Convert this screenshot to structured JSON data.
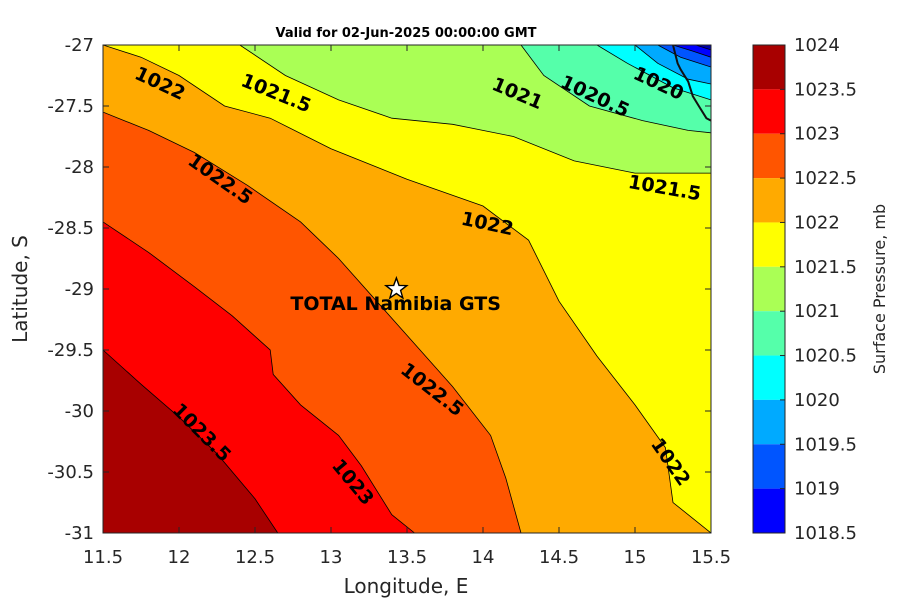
{
  "chart_data": {
    "type": "heatmap",
    "title": "Valid for 02-Jun-2025 00:00:00 GMT",
    "xlabel": "Longitude, E",
    "ylabel": "Latitude, S",
    "xlim": [
      11.5,
      15.5
    ],
    "ylim": [
      -31,
      -27
    ],
    "x_ticks": [
      "11.5",
      "12",
      "12.5",
      "13",
      "13.5",
      "14",
      "14.5",
      "15",
      "15.5"
    ],
    "y_ticks": [
      "-27",
      "-27.5",
      "-28",
      "-28.5",
      "-29",
      "-29.5",
      "-30",
      "-30.5",
      "-31"
    ],
    "colorbar": {
      "label": "Surface Pressure, mb",
      "range": [
        1018.5,
        1024
      ],
      "ticks": [
        "1024",
        "1023.5",
        "1023",
        "1022.5",
        "1022",
        "1021.5",
        "1021",
        "1020.5",
        "1020",
        "1019.5",
        "1019",
        "1018.5"
      ],
      "bands": [
        {
          "from": 1023.5,
          "to": 1024.0,
          "color": "#a80000"
        },
        {
          "from": 1023.0,
          "to": 1023.5,
          "color": "#ff0000"
        },
        {
          "from": 1022.5,
          "to": 1023.0,
          "color": "#ff5500"
        },
        {
          "from": 1022.0,
          "to": 1022.5,
          "color": "#ffaa00"
        },
        {
          "from": 1021.5,
          "to": 1022.0,
          "color": "#ffff00"
        },
        {
          "from": 1021.0,
          "to": 1021.5,
          "color": "#aaff55"
        },
        {
          "from": 1020.5,
          "to": 1021.0,
          "color": "#55ffaa"
        },
        {
          "from": 1020.0,
          "to": 1020.5,
          "color": "#00ffff"
        },
        {
          "from": 1019.5,
          "to": 1020.0,
          "color": "#00aaff"
        },
        {
          "from": 1019.0,
          "to": 1019.5,
          "color": "#0055ff"
        },
        {
          "from": 1018.5,
          "to": 1019.0,
          "color": "#0000ff"
        },
        {
          "from": 1018.0,
          "to": 1018.5,
          "color": "#0000aa"
        }
      ]
    },
    "contours": [
      {
        "level": "1023.5",
        "points": [
          [
            11.5,
            -29.5
          ],
          [
            11.75,
            -29.78
          ],
          [
            12.0,
            -30.05
          ],
          [
            12.25,
            -30.35
          ],
          [
            12.5,
            -30.72
          ],
          [
            12.65,
            -31.0
          ]
        ]
      },
      {
        "level": "1023",
        "points": [
          [
            11.5,
            -28.45
          ],
          [
            11.8,
            -28.7
          ],
          [
            12.1,
            -28.98
          ],
          [
            12.35,
            -29.22
          ],
          [
            12.6,
            -29.5
          ],
          [
            12.62,
            -29.7
          ],
          [
            12.8,
            -29.95
          ],
          [
            13.05,
            -30.2
          ],
          [
            13.2,
            -30.45
          ],
          [
            13.4,
            -30.85
          ],
          [
            13.55,
            -31.0
          ]
        ]
      },
      {
        "level": "1022.5",
        "points": [
          [
            11.5,
            -27.55
          ],
          [
            11.8,
            -27.7
          ],
          [
            12.1,
            -27.88
          ],
          [
            12.45,
            -28.15
          ],
          [
            12.8,
            -28.45
          ],
          [
            13.05,
            -28.75
          ],
          [
            13.3,
            -29.1
          ],
          [
            13.55,
            -29.45
          ],
          [
            13.8,
            -29.8
          ],
          [
            14.05,
            -30.2
          ],
          [
            14.15,
            -30.55
          ],
          [
            14.25,
            -31.0
          ]
        ]
      },
      {
        "level": "1022",
        "points": [
          [
            11.5,
            -27.0
          ],
          [
            11.75,
            -27.1
          ],
          [
            12.0,
            -27.25
          ],
          [
            12.3,
            -27.5
          ],
          [
            12.6,
            -27.6
          ],
          [
            13.0,
            -27.85
          ],
          [
            13.5,
            -28.1
          ],
          [
            14.0,
            -28.32
          ],
          [
            14.3,
            -28.6
          ],
          [
            14.5,
            -29.1
          ],
          [
            14.75,
            -29.55
          ],
          [
            15.0,
            -29.95
          ],
          [
            15.2,
            -30.3
          ],
          [
            15.25,
            -30.75
          ],
          [
            15.5,
            -31.0
          ]
        ]
      },
      {
        "level": "1021.5",
        "points": [
          [
            12.4,
            -27.0
          ],
          [
            12.7,
            -27.25
          ],
          [
            13.05,
            -27.45
          ],
          [
            13.4,
            -27.6
          ],
          [
            13.8,
            -27.65
          ],
          [
            14.2,
            -27.75
          ],
          [
            14.6,
            -27.95
          ],
          [
            15.0,
            -28.05
          ],
          [
            15.3,
            -28.05
          ],
          [
            15.5,
            -28.05
          ]
        ]
      },
      {
        "level": "1021",
        "points": [
          [
            14.25,
            -27.0
          ],
          [
            14.4,
            -27.25
          ],
          [
            14.7,
            -27.5
          ],
          [
            15.05,
            -27.62
          ],
          [
            15.35,
            -27.7
          ],
          [
            15.5,
            -27.72
          ]
        ]
      },
      {
        "level": "1020.5",
        "points": [
          [
            14.75,
            -27.0
          ],
          [
            14.95,
            -27.15
          ],
          [
            15.25,
            -27.35
          ],
          [
            15.5,
            -27.45
          ]
        ]
      },
      {
        "level": "1020",
        "points": [
          [
            15.0,
            -27.0
          ],
          [
            15.15,
            -27.15
          ],
          [
            15.35,
            -27.28
          ],
          [
            15.5,
            -27.32
          ]
        ]
      },
      {
        "level": "1019.5",
        "points": [
          [
            15.15,
            -27.0
          ],
          [
            15.3,
            -27.1
          ],
          [
            15.5,
            -27.18
          ]
        ]
      },
      {
        "level": "1019",
        "points": [
          [
            15.25,
            -27.0
          ],
          [
            15.38,
            -27.05
          ],
          [
            15.5,
            -27.1
          ]
        ]
      },
      {
        "level": "1018.5",
        "points": [
          [
            15.4,
            -27.0
          ],
          [
            15.5,
            -27.04
          ]
        ]
      }
    ],
    "contour_labels": [
      {
        "text": "1022",
        "x": 11.7,
        "y": -27.27,
        "angle": 25
      },
      {
        "text": "1021.5",
        "x": 12.4,
        "y": -27.33,
        "angle": 22
      },
      {
        "text": "1021",
        "x": 14.05,
        "y": -27.36,
        "angle": 23
      },
      {
        "text": "1020.5",
        "x": 14.5,
        "y": -27.34,
        "angle": 25
      },
      {
        "text": "1020",
        "x": 14.98,
        "y": -27.27,
        "angle": 25
      },
      {
        "text": "1022.5",
        "x": 12.05,
        "y": -27.97,
        "angle": 35
      },
      {
        "text": "1022",
        "x": 13.85,
        "y": -28.47,
        "angle": 12
      },
      {
        "text": "1021.5",
        "x": 14.95,
        "y": -28.17,
        "angle": 10
      },
      {
        "text": "1022.5",
        "x": 13.45,
        "y": -29.68,
        "angle": 38
      },
      {
        "text": "1023.5",
        "x": 11.95,
        "y": -30.0,
        "angle": 45
      },
      {
        "text": "1023",
        "x": 13.0,
        "y": -30.45,
        "angle": 50
      },
      {
        "text": "1022",
        "x": 15.1,
        "y": -30.27,
        "angle": 55
      }
    ],
    "marker": {
      "label": "TOTAL Namibia GTS",
      "lon": 13.43,
      "lat": -29.0
    },
    "coastline": [
      [
        15.25,
        -27.0
      ],
      [
        15.28,
        -27.15
      ],
      [
        15.3,
        -27.2
      ],
      [
        15.35,
        -27.3
      ],
      [
        15.38,
        -27.42
      ],
      [
        15.42,
        -27.5
      ],
      [
        15.47,
        -27.6
      ],
      [
        15.5,
        -27.62
      ]
    ],
    "grid": false
  }
}
